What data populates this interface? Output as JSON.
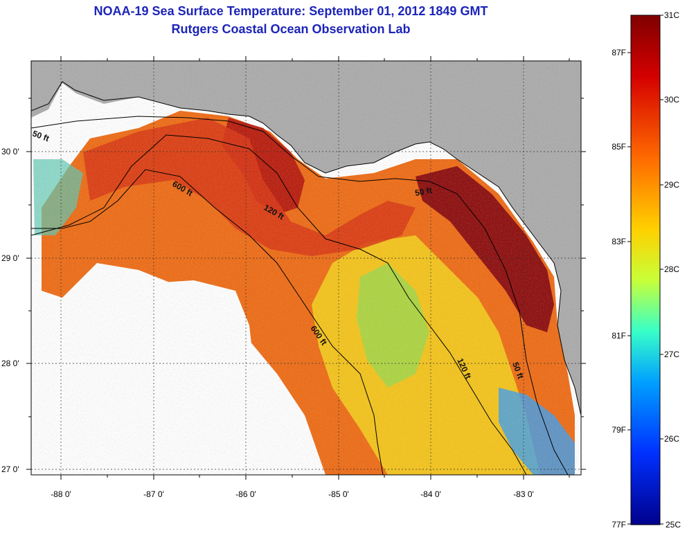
{
  "header": {
    "title": "NOAA-19 Sea Surface Temperature:  September 01, 2012 1849 GMT",
    "subtitle": "Rutgers Coastal Ocean Observation Lab"
  },
  "map": {
    "lon_ticks": [
      "-88 0'",
      "-87 0'",
      "-86 0'",
      "-85 0'",
      "-84 0'",
      "-83 0'"
    ],
    "lat_ticks": [
      "30 0'",
      "29 0'",
      "28 0'",
      "27 0'"
    ],
    "contour_labels": [
      "50 ft",
      "600 ft",
      "120 ft",
      "50 ft",
      "600 ft",
      "120 ft",
      "50 ft"
    ],
    "colors": {
      "land": "#aaaaaa",
      "cloud": "#ffffff",
      "contour": "#000000"
    }
  },
  "colorbar": {
    "celsius_labels": [
      "31C",
      "30C",
      "29C",
      "28C",
      "27C",
      "26C",
      "25C"
    ],
    "fahrenheit_labels": [
      "87F",
      "85F",
      "83F",
      "81F",
      "79F",
      "77F"
    ],
    "colors": [
      "#800000",
      "#d40000",
      "#ff6a00",
      "#ffd000",
      "#c8ff38",
      "#38ffc8",
      "#00a0ff",
      "#0030ff",
      "#00008c"
    ]
  }
}
